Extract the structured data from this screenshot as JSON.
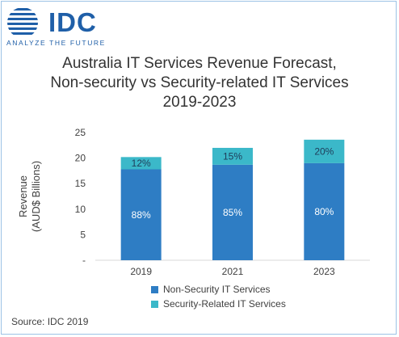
{
  "header": {
    "logo_text": "IDC",
    "logo_tagline": "ANALYZE THE FUTURE"
  },
  "colors": {
    "non_security": "#2e7dc4",
    "security": "#3bb8c9",
    "logo": "#1f5fa8"
  },
  "source_text": "Source: IDC 2019",
  "chart_data": {
    "type": "bar",
    "stacked": true,
    "title_lines": [
      "Australia IT Services Revenue Forecast,",
      "Non-security vs Security-related IT Services",
      "2019-2023"
    ],
    "ylabel_lines": [
      "Revenue",
      "(AUD$ Billions)"
    ],
    "xlabel": "",
    "categories": [
      "2019",
      "2021",
      "2023"
    ],
    "ylim": [
      0,
      25
    ],
    "yticks": [
      {
        "value": 0,
        "label": "-"
      },
      {
        "value": 5,
        "label": "5"
      },
      {
        "value": 10,
        "label": "10"
      },
      {
        "value": 15,
        "label": "15"
      },
      {
        "value": 20,
        "label": "20"
      },
      {
        "value": 25,
        "label": "25"
      }
    ],
    "grid": false,
    "legend_position": "bottom",
    "series": [
      {
        "name": "Non-Security IT Services",
        "values": [
          17.8,
          18.7,
          19.0
        ],
        "labels": [
          "88%",
          "85%",
          "80%"
        ],
        "color": "#2e7dc4"
      },
      {
        "name": "Security-Related IT Services",
        "values": [
          2.4,
          3.3,
          4.6
        ],
        "labels": [
          "12%",
          "15%",
          "20%"
        ],
        "color": "#3bb8c9"
      }
    ]
  }
}
